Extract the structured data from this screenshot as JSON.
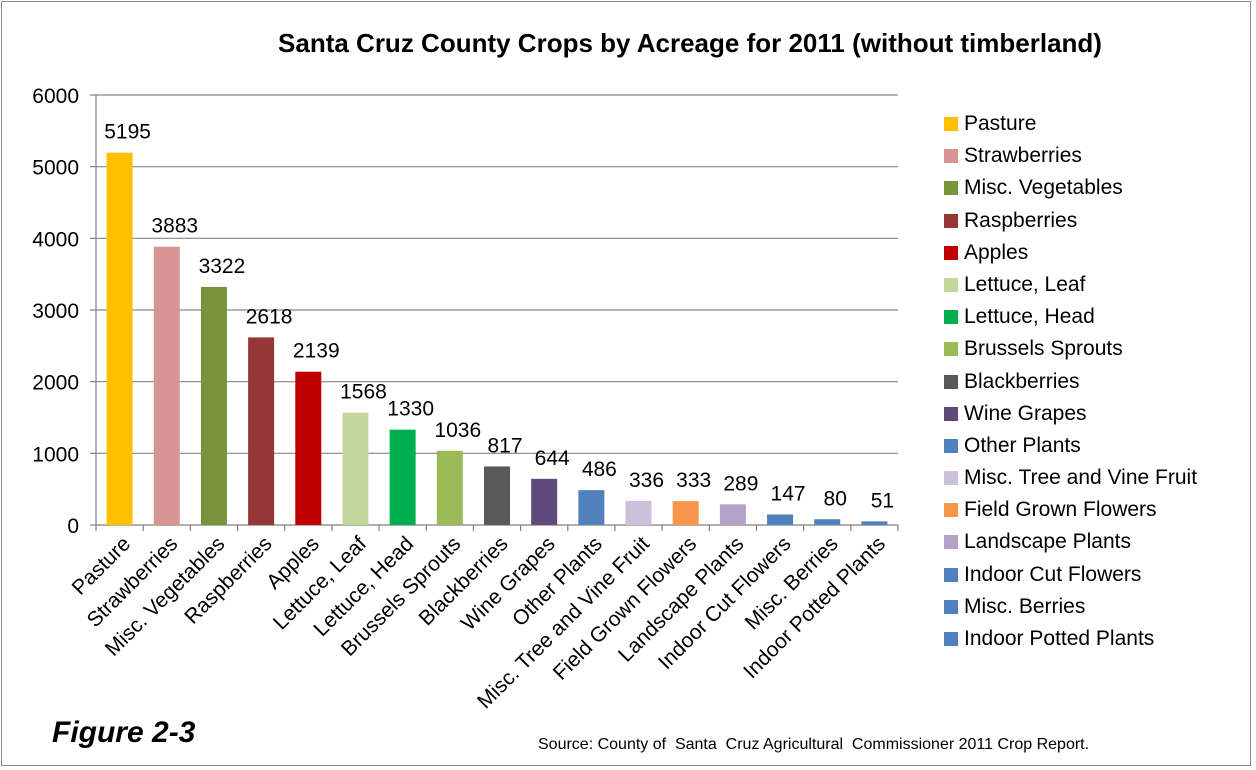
{
  "figure_label": "Figure 2-3",
  "source_note": "Source: County of  Santa  Cruz Agricultural  Commissioner 2011 Crop Report.",
  "chart_data": {
    "type": "bar",
    "title": "Santa Cruz County Crops by Acreage for 2011 (without timberland)",
    "xlabel": "",
    "ylabel": "",
    "ylim": [
      0,
      6000
    ],
    "yticks": [
      0,
      1000,
      2000,
      3000,
      4000,
      5000,
      6000
    ],
    "grid": true,
    "legend_position": "right",
    "categories": [
      "Pasture",
      "Strawberries",
      "Misc. Vegetables",
      "Raspberries",
      "Apples",
      "Lettuce, Leaf",
      "Lettuce, Head",
      "Brussels Sprouts",
      "Blackberries",
      "Wine Grapes",
      "Other Plants",
      "Misc. Tree and Vine Fruit",
      "Field Grown Flowers",
      "Landscape Plants",
      "Indoor Cut Flowers",
      "Misc. Berries",
      "Indoor Potted Plants"
    ],
    "values": [
      5195,
      3883,
      3322,
      2618,
      2139,
      1568,
      1330,
      1036,
      817,
      644,
      486,
      336,
      333,
      289,
      147,
      80,
      51
    ],
    "colors": [
      "#FFC000",
      "#D99594",
      "#77933C",
      "#953735",
      "#C00000",
      "#C3D69B",
      "#00B050",
      "#9BBB59",
      "#595959",
      "#604A7B",
      "#4F81BD",
      "#CCC1DA",
      "#F79646",
      "#B3A2C7",
      "#4F81BD",
      "#4F81BD",
      "#4F81BD"
    ]
  }
}
